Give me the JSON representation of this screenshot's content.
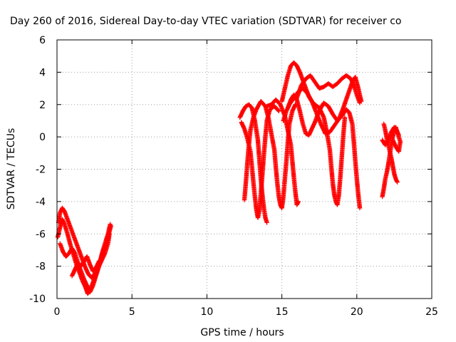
{
  "chart_data": {
    "type": "scatter",
    "title": "Day 260 of 2016, Sidereal Day-to-day VTEC variation (SDTVAR) for receiver co",
    "xlabel": "GPS time / hours",
    "ylabel": "SDTVAR / TECUs",
    "xlim": [
      0,
      25
    ],
    "ylim": [
      -10,
      6
    ],
    "xticks": [
      0,
      5,
      10,
      15,
      20,
      25
    ],
    "yticks": [
      -10,
      -8,
      -6,
      -4,
      -2,
      0,
      2,
      4,
      6
    ],
    "grid": true,
    "marker": "+",
    "colors": {
      "series": "#ff0000",
      "grid": "#a0a0a0",
      "axis": "#000000"
    },
    "tracks": [
      [
        [
          0.1,
          -5.3
        ],
        [
          0.2,
          -4.7
        ],
        [
          0.35,
          -4.4
        ],
        [
          0.5,
          -4.6
        ],
        [
          0.7,
          -5.1
        ],
        [
          0.9,
          -5.6
        ],
        [
          1.1,
          -6.1
        ],
        [
          1.3,
          -6.6
        ],
        [
          1.5,
          -7.1
        ],
        [
          1.7,
          -7.6
        ],
        [
          1.9,
          -8.1
        ],
        [
          2.1,
          -8.5
        ],
        [
          2.3,
          -8.7
        ],
        [
          2.6,
          -8.4
        ],
        [
          2.8,
          -7.9
        ],
        [
          3.0,
          -7.3
        ],
        [
          3.2,
          -6.8
        ],
        [
          3.4,
          -6.2
        ],
        [
          3.6,
          -5.5
        ]
      ],
      [
        [
          0.05,
          -6.2
        ],
        [
          0.2,
          -5.6
        ],
        [
          0.35,
          -5.1
        ],
        [
          0.5,
          -5.4
        ],
        [
          0.7,
          -6.0
        ],
        [
          0.9,
          -6.7
        ],
        [
          1.1,
          -7.3
        ],
        [
          1.3,
          -7.9
        ],
        [
          1.5,
          -8.4
        ],
        [
          1.7,
          -8.9
        ],
        [
          1.9,
          -9.3
        ],
        [
          2.05,
          -9.7
        ],
        [
          2.2,
          -9.5
        ],
        [
          2.4,
          -9.0
        ],
        [
          2.6,
          -8.5
        ],
        [
          2.8,
          -8.0
        ],
        [
          3.0,
          -7.6
        ],
        [
          3.2,
          -7.2
        ],
        [
          3.4,
          -6.6
        ],
        [
          3.5,
          -6.0
        ]
      ],
      [
        [
          0.2,
          -6.6
        ],
        [
          0.4,
          -7.1
        ],
        [
          0.6,
          -7.4
        ],
        [
          0.8,
          -7.2
        ],
        [
          1.0,
          -6.9
        ],
        [
          1.2,
          -7.2
        ],
        [
          1.4,
          -7.8
        ],
        [
          1.6,
          -8.0
        ],
        [
          1.8,
          -7.7
        ],
        [
          2.0,
          -7.4
        ],
        [
          2.2,
          -7.9
        ],
        [
          2.4,
          -8.3
        ],
        [
          2.6,
          -8.1
        ],
        [
          2.8,
          -7.7
        ],
        [
          3.0,
          -7.5
        ]
      ],
      [
        [
          1.0,
          -8.6
        ],
        [
          1.2,
          -8.2
        ],
        [
          1.4,
          -7.8
        ],
        [
          1.6,
          -8.3
        ],
        [
          1.8,
          -8.8
        ],
        [
          2.0,
          -9.2
        ],
        [
          2.2,
          -9.6
        ],
        [
          2.4,
          -9.2
        ],
        [
          2.6,
          -8.6
        ],
        [
          2.8,
          -8.0
        ],
        [
          3.0,
          -7.2
        ],
        [
          3.2,
          -6.6
        ],
        [
          3.4,
          -6.0
        ],
        [
          3.55,
          -5.4
        ]
      ],
      [
        [
          12.2,
          1.2
        ],
        [
          12.4,
          1.6
        ],
        [
          12.6,
          1.9
        ],
        [
          12.8,
          2.0
        ],
        [
          13.0,
          1.8
        ],
        [
          13.2,
          1.0
        ],
        [
          13.4,
          -0.2
        ],
        [
          13.5,
          -1.4
        ],
        [
          13.6,
          -2.6
        ],
        [
          13.7,
          -3.6
        ],
        [
          13.8,
          -4.4
        ],
        [
          13.9,
          -5.0
        ],
        [
          14.0,
          -5.3
        ]
      ],
      [
        [
          12.3,
          0.9
        ],
        [
          12.5,
          0.5
        ],
        [
          12.7,
          -0.1
        ],
        [
          12.9,
          -0.9
        ],
        [
          13.0,
          -1.8
        ],
        [
          13.1,
          -2.8
        ],
        [
          13.2,
          -3.7
        ],
        [
          13.3,
          -4.5
        ],
        [
          13.4,
          -5.0
        ],
        [
          13.5,
          -4.6
        ],
        [
          13.6,
          -3.5
        ],
        [
          13.7,
          -2.3
        ],
        [
          13.8,
          -1.1
        ],
        [
          13.9,
          0.0
        ],
        [
          14.0,
          1.0
        ],
        [
          14.2,
          1.7
        ],
        [
          14.5,
          1.9
        ],
        [
          14.8,
          1.6
        ]
      ],
      [
        [
          12.5,
          -3.9
        ],
        [
          12.6,
          -2.8
        ],
        [
          12.7,
          -1.6
        ],
        [
          12.8,
          -0.5
        ],
        [
          12.9,
          0.4
        ],
        [
          13.1,
          1.2
        ],
        [
          13.3,
          1.7
        ],
        [
          13.6,
          2.2
        ],
        [
          13.9,
          1.9
        ],
        [
          14.1,
          1.2
        ],
        [
          14.3,
          0.2
        ],
        [
          14.5,
          -0.8
        ],
        [
          14.6,
          -1.9
        ],
        [
          14.7,
          -2.9
        ],
        [
          14.8,
          -3.7
        ],
        [
          14.9,
          -4.2
        ],
        [
          15.0,
          -4.4
        ],
        [
          15.1,
          -3.7
        ],
        [
          15.2,
          -2.6
        ],
        [
          15.3,
          -1.5
        ],
        [
          15.4,
          -0.3
        ],
        [
          15.5,
          0.8
        ],
        [
          15.7,
          1.6
        ],
        [
          15.9,
          2.0
        ]
      ],
      [
        [
          14.0,
          1.9
        ],
        [
          14.3,
          2.0
        ],
        [
          14.6,
          2.3
        ],
        [
          14.9,
          2.0
        ],
        [
          15.2,
          1.3
        ],
        [
          15.4,
          0.4
        ],
        [
          15.6,
          -0.5
        ],
        [
          15.7,
          -1.5
        ],
        [
          15.8,
          -2.5
        ],
        [
          15.9,
          -3.4
        ],
        [
          16.0,
          -4.2
        ],
        [
          16.1,
          -4.0
        ]
      ],
      [
        [
          15.0,
          2.2
        ],
        [
          15.2,
          3.0
        ],
        [
          15.4,
          3.8
        ],
        [
          15.6,
          4.4
        ],
        [
          15.8,
          4.6
        ],
        [
          16.0,
          4.4
        ],
        [
          16.2,
          4.0
        ],
        [
          16.4,
          3.5
        ],
        [
          16.6,
          3.0
        ],
        [
          16.8,
          2.5
        ],
        [
          17.0,
          2.2
        ],
        [
          17.2,
          2.0
        ],
        [
          17.5,
          1.8
        ],
        [
          17.8,
          1.2
        ],
        [
          18.0,
          0.3
        ],
        [
          18.2,
          -0.8
        ],
        [
          18.3,
          -1.9
        ],
        [
          18.4,
          -2.9
        ],
        [
          18.5,
          -3.6
        ],
        [
          18.6,
          -4.0
        ],
        [
          18.7,
          -4.2
        ],
        [
          18.8,
          -3.6
        ],
        [
          18.9,
          -2.5
        ],
        [
          19.0,
          -1.2
        ],
        [
          19.1,
          0.1
        ],
        [
          19.2,
          1.2
        ]
      ],
      [
        [
          16.0,
          2.4
        ],
        [
          16.3,
          3.2
        ],
        [
          16.6,
          3.6
        ],
        [
          16.9,
          3.8
        ],
        [
          17.2,
          3.4
        ],
        [
          17.5,
          3.0
        ],
        [
          17.8,
          3.1
        ],
        [
          18.1,
          3.3
        ],
        [
          18.4,
          3.1
        ],
        [
          18.7,
          3.3
        ],
        [
          19.0,
          3.6
        ],
        [
          19.3,
          3.8
        ],
        [
          19.6,
          3.6
        ],
        [
          19.8,
          3.2
        ],
        [
          20.0,
          2.6
        ],
        [
          20.2,
          2.1
        ]
      ],
      [
        [
          15.4,
          1.8
        ],
        [
          15.6,
          2.3
        ],
        [
          15.8,
          2.6
        ],
        [
          16.0,
          2.3
        ],
        [
          16.2,
          1.6
        ],
        [
          16.4,
          0.8
        ],
        [
          16.6,
          0.2
        ],
        [
          16.8,
          0.1
        ],
        [
          17.0,
          0.5
        ],
        [
          17.2,
          0.9
        ],
        [
          17.4,
          1.4
        ],
        [
          17.6,
          1.8
        ],
        [
          17.8,
          2.1
        ],
        [
          18.1,
          1.9
        ],
        [
          18.4,
          1.4
        ],
        [
          18.7,
          1.0
        ],
        [
          19.0,
          1.3
        ],
        [
          19.3,
          1.7
        ],
        [
          19.5,
          1.5
        ],
        [
          19.7,
          0.8
        ],
        [
          19.8,
          -0.3
        ],
        [
          19.9,
          -1.5
        ],
        [
          20.0,
          -2.6
        ],
        [
          20.1,
          -3.6
        ],
        [
          20.2,
          -4.4
        ]
      ],
      [
        [
          15.1,
          1.0
        ],
        [
          15.3,
          1.6
        ],
        [
          15.5,
          2.0
        ],
        [
          15.8,
          2.4
        ],
        [
          16.1,
          2.8
        ],
        [
          16.4,
          3.0
        ],
        [
          16.7,
          2.7
        ],
        [
          17.0,
          2.2
        ],
        [
          17.3,
          1.5
        ],
        [
          17.6,
          0.8
        ],
        [
          17.9,
          0.2
        ],
        [
          18.2,
          0.3
        ],
        [
          18.5,
          0.7
        ],
        [
          18.8,
          1.1
        ],
        [
          19.1,
          1.8
        ],
        [
          19.4,
          2.6
        ],
        [
          19.7,
          3.4
        ],
        [
          19.9,
          3.7
        ],
        [
          20.1,
          3.0
        ],
        [
          20.3,
          2.2
        ]
      ],
      [
        [
          21.7,
          -3.7
        ],
        [
          21.8,
          -3.2
        ],
        [
          21.9,
          -2.6
        ],
        [
          22.0,
          -2.2
        ],
        [
          22.1,
          -1.7
        ],
        [
          22.2,
          -1.1
        ],
        [
          22.3,
          -0.5
        ],
        [
          22.4,
          0.0
        ],
        [
          22.5,
          0.5
        ],
        [
          22.6,
          0.6
        ],
        [
          22.7,
          0.3
        ],
        [
          22.8,
          0.1
        ]
      ],
      [
        [
          21.8,
          0.8
        ],
        [
          21.9,
          0.4
        ],
        [
          22.0,
          -0.1
        ],
        [
          22.1,
          -0.5
        ],
        [
          22.2,
          -0.9
        ],
        [
          22.3,
          -1.3
        ],
        [
          22.4,
          -1.8
        ],
        [
          22.5,
          -2.3
        ],
        [
          22.6,
          -2.6
        ],
        [
          22.7,
          -2.8
        ]
      ],
      [
        [
          21.7,
          -0.2
        ],
        [
          21.9,
          -0.5
        ],
        [
          22.1,
          -0.2
        ],
        [
          22.3,
          0.3
        ],
        [
          22.5,
          0.6
        ],
        [
          22.7,
          0.3
        ],
        [
          22.9,
          -0.3
        ],
        [
          22.8,
          -0.9
        ],
        [
          22.6,
          -0.6
        ],
        [
          22.4,
          -0.2
        ]
      ]
    ]
  }
}
